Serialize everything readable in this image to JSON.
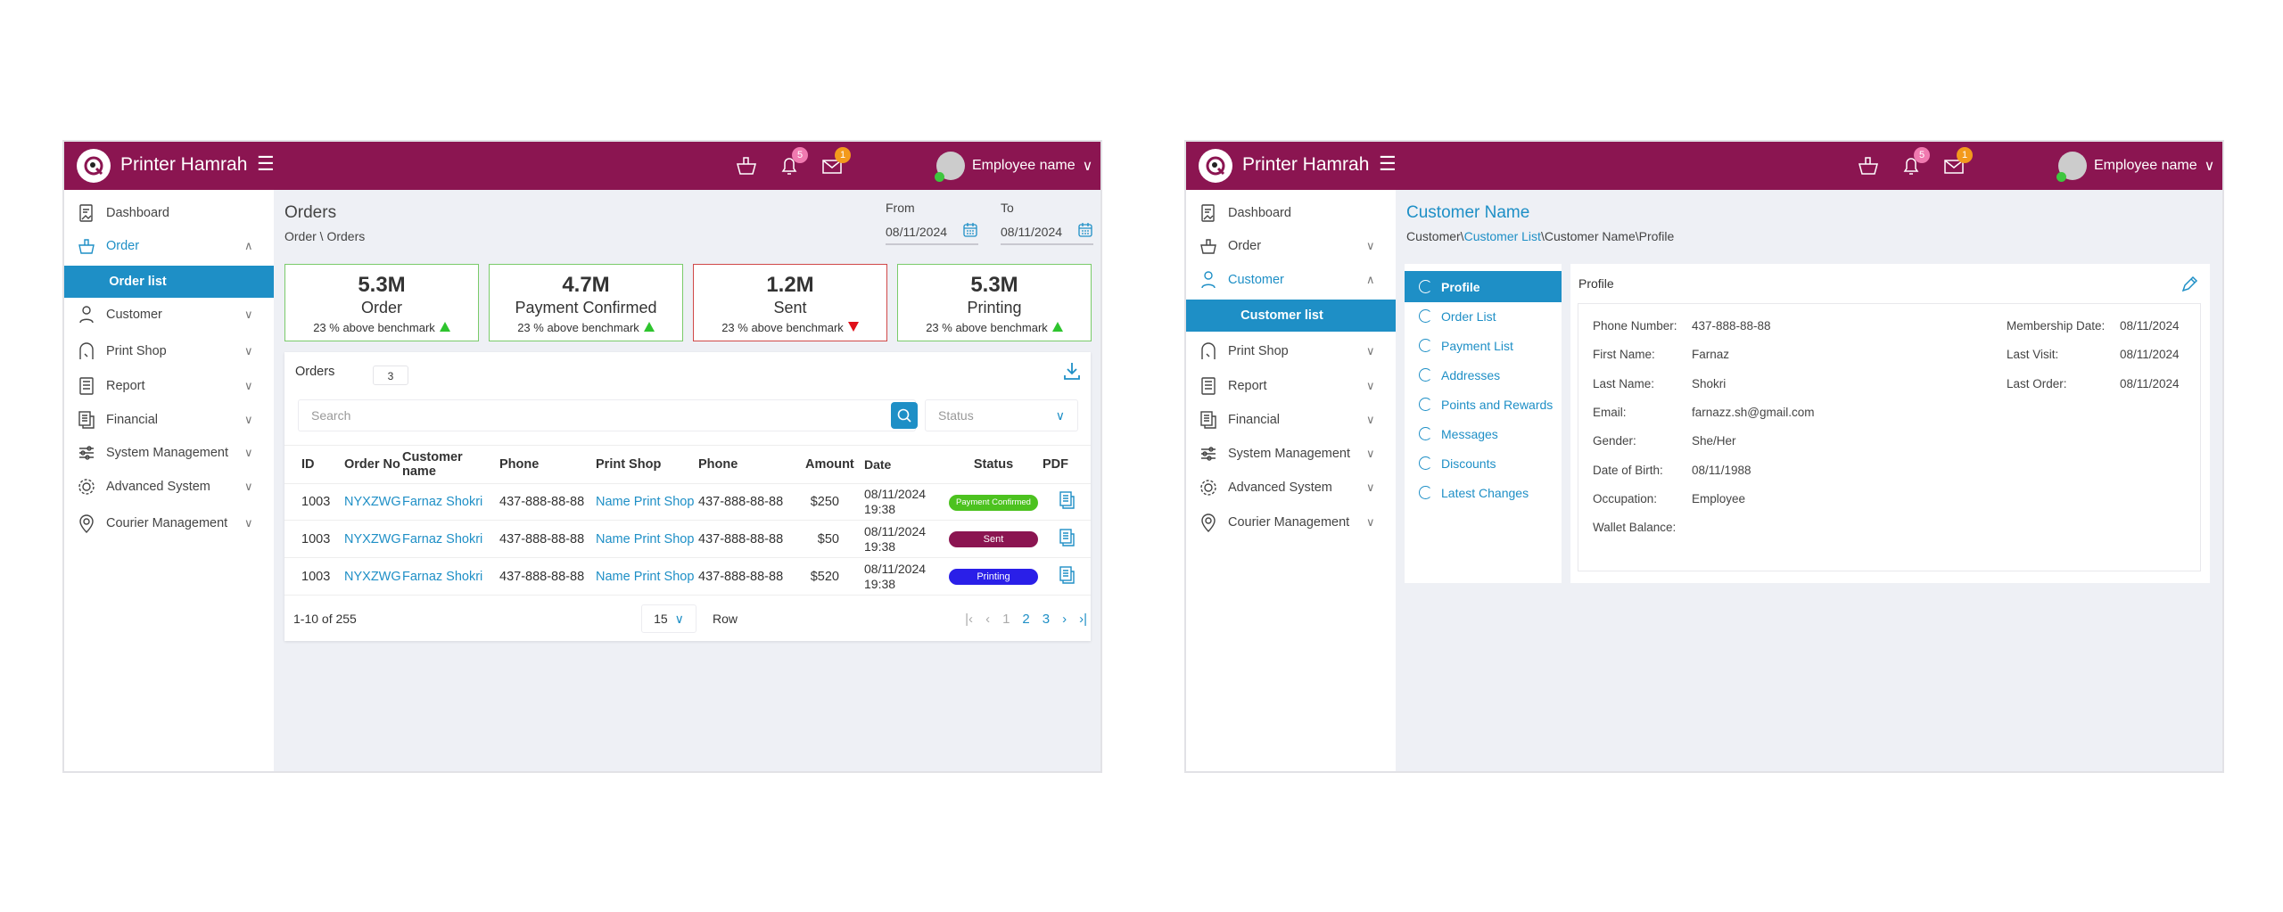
{
  "app": {
    "name": "Printer Hamrah",
    "user": "Employee name",
    "notifications": "5",
    "messages": "1"
  },
  "orders_page": {
    "sidebar": [
      {
        "label": "Dashboard",
        "icon": "dashboard"
      },
      {
        "label": "Order",
        "icon": "basket",
        "chevron": "up",
        "active": true
      },
      {
        "label": "Order list",
        "sub": true
      },
      {
        "label": "Customer",
        "icon": "person",
        "chevron": "down"
      },
      {
        "label": "Print Shop",
        "icon": "shop",
        "chevron": "down"
      },
      {
        "label": "Report",
        "icon": "report",
        "chevron": "down"
      },
      {
        "label": "Financial",
        "icon": "financial",
        "chevron": "down"
      },
      {
        "label": "System Management",
        "icon": "sliders",
        "chevron": "down"
      },
      {
        "label": "Advanced System",
        "icon": "gear",
        "chevron": "down"
      },
      {
        "label": "Courier Management",
        "icon": "location",
        "chevron": "down"
      }
    ],
    "title": "Orders",
    "breadcrumb": "Order \\ Orders",
    "from_label": "From",
    "from": "08/11/2024",
    "to_label": "To",
    "to": "08/11/2024",
    "stats": [
      {
        "value": "5.3M",
        "label": "Order",
        "note": "23 % above benchmark",
        "trend": "up"
      },
      {
        "value": "4.7M",
        "label": "Payment Confirmed",
        "note": "23 % above benchmark",
        "trend": "up"
      },
      {
        "value": "1.2M",
        "label": "Sent",
        "note": "23 % above benchmark",
        "trend": "down"
      },
      {
        "value": "5.3M",
        "label": "Printing",
        "note": "23 % above benchmark",
        "trend": "up"
      }
    ],
    "table": {
      "title": "Orders",
      "count": "3",
      "search_placeholder": "Search",
      "status_placeholder": "Status",
      "columns": [
        "ID",
        "Order No",
        "Customer name",
        "Phone",
        "Print Shop",
        "Phone",
        "Amount",
        "Date",
        "Status",
        "PDF"
      ],
      "rows": [
        {
          "id": "1003",
          "order_no": "NYXZWG",
          "customer": "Farnaz Shokri",
          "phone": "437-888-88-88",
          "shop": "Name Print Shop",
          "shop_phone": "437-888-88-88",
          "amount": "$250",
          "date": "08/11/2024",
          "time": "19:38",
          "status": "Payment Confirmed",
          "status_color": "#4cc21f"
        },
        {
          "id": "1003",
          "order_no": "NYXZWG",
          "customer": "Farnaz Shokri",
          "phone": "437-888-88-88",
          "shop": "Name Print Shop",
          "shop_phone": "437-888-88-88",
          "amount": "$50",
          "date": "08/11/2024",
          "time": "19:38",
          "status": "Sent",
          "status_color": "#8b1551"
        },
        {
          "id": "1003",
          "order_no": "NYXZWG",
          "customer": "Farnaz Shokri",
          "phone": "437-888-88-88",
          "shop": "Name Print Shop",
          "shop_phone": "437-888-88-88",
          "amount": "$520",
          "date": "08/11/2024",
          "time": "19:38",
          "status": "Printing",
          "status_color": "#2a1fe8"
        }
      ],
      "range": "1-10 of 255",
      "page_size": "15",
      "row_label": "Row",
      "pages": [
        "1",
        "2",
        "3"
      ]
    }
  },
  "customer_page": {
    "sidebar": [
      {
        "label": "Dashboard",
        "icon": "dashboard"
      },
      {
        "label": "Order",
        "icon": "basket",
        "chevron": "down"
      },
      {
        "label": "Customer",
        "icon": "person",
        "chevron": "up",
        "active": true
      },
      {
        "label": "Customer list",
        "sub": true
      },
      {
        "label": "Print Shop",
        "icon": "shop",
        "chevron": "down"
      },
      {
        "label": "Report",
        "icon": "report",
        "chevron": "down"
      },
      {
        "label": "Financial",
        "icon": "financial",
        "chevron": "down"
      },
      {
        "label": "System Management",
        "icon": "sliders",
        "chevron": "down"
      },
      {
        "label": "Advanced System",
        "icon": "gear",
        "chevron": "down"
      },
      {
        "label": "Courier Management",
        "icon": "location",
        "chevron": "down"
      }
    ],
    "title": "Customer Name",
    "breadcrumb": {
      "part1": "Customer\\",
      "link": "Customer List",
      "part2": "\\Customer Name\\Profile"
    },
    "tabs": [
      "Profile",
      "Order List",
      "Payment List",
      "Addresses",
      "Points and Rewards",
      "Messages",
      "Discounts",
      "Latest Changes"
    ],
    "profile_title": "Profile",
    "fields_left": [
      {
        "label": "Phone Number:",
        "value": "437-888-88-88"
      },
      {
        "label": "First Name:",
        "value": "Farnaz"
      },
      {
        "label": "Last Name:",
        "value": "Shokri"
      },
      {
        "label": "Email:",
        "value": "farnazz.sh@gmail.com"
      },
      {
        "label": "Gender:",
        "value": "She/Her"
      },
      {
        "label": "Date of Birth:",
        "value": "08/11/1988"
      },
      {
        "label": "Occupation:",
        "value": "Employee"
      },
      {
        "label": "Wallet Balance:",
        "value": ""
      }
    ],
    "fields_right": [
      {
        "label": "Membership Date:",
        "value": "08/11/2024"
      },
      {
        "label": "Last Visit:",
        "value": "08/11/2024"
      },
      {
        "label": "Last Order:",
        "value": "08/11/2024"
      }
    ]
  }
}
